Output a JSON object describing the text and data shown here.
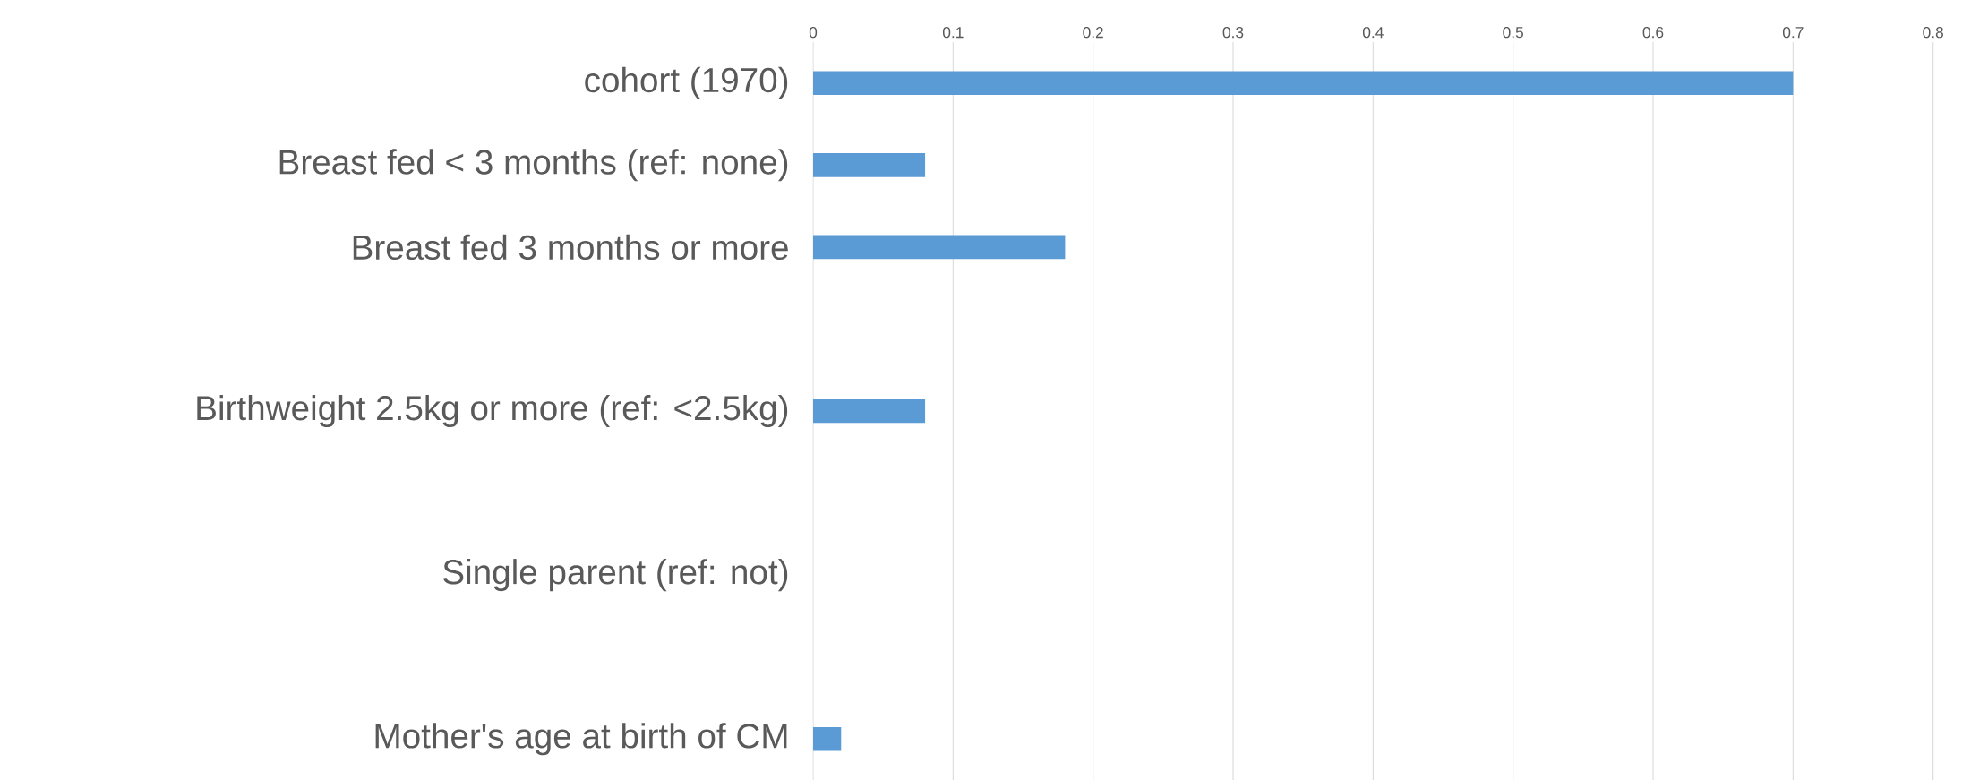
{
  "chart_data": {
    "type": "bar",
    "orientation": "horizontal",
    "categories": [
      "cohort (1970)",
      "Breast fed < 3 months (ref: none)",
      "Breast fed 3 months or more",
      null,
      "Birthweight 2.5kg or more (ref: <2.5kg)",
      null,
      "Single parent (ref: not)",
      null,
      "Mother's age at birth of CM"
    ],
    "values": [
      0.7,
      0.08,
      0.18,
      null,
      0.08,
      null,
      0,
      null,
      0.02
    ],
    "color": "#5b9bd5",
    "xlim": [
      0,
      0.8
    ],
    "xticks": [
      0,
      0.1,
      0.2,
      0.3,
      0.4,
      0.5,
      0.6,
      0.7,
      0.8
    ],
    "grid": "x"
  }
}
